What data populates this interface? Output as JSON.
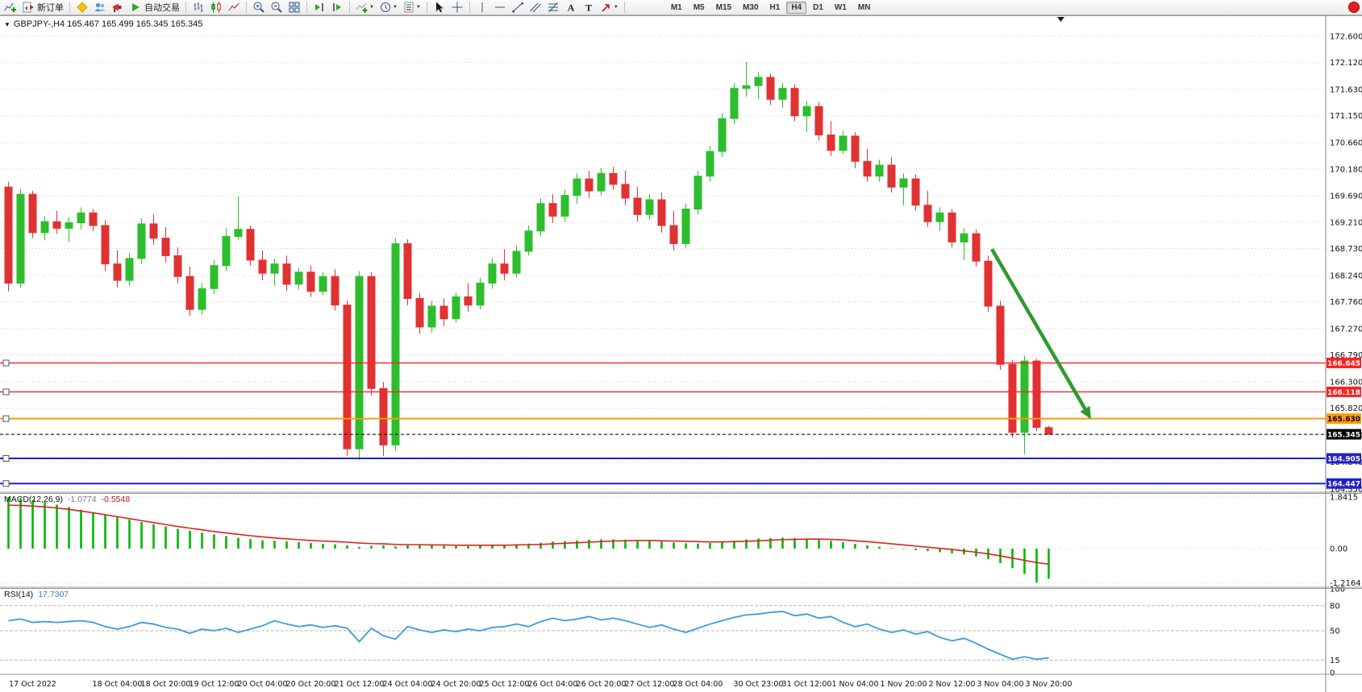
{
  "toolbar": {
    "new_order_label": "新订单",
    "autotrading_label": "自动交易",
    "timeframes": [
      "M1",
      "M5",
      "M15",
      "M30",
      "H1",
      "H4",
      "D1",
      "W1",
      "MN"
    ],
    "active_timeframe": "H4"
  },
  "chart": {
    "title": "GBPJPY-,H4 165.467 165.499 165.345 165.345"
  },
  "chart_data": {
    "type": "candlestick",
    "symbol": "GBPJPY-",
    "period": "H4",
    "ohlc": {
      "open": "165.467",
      "high": "165.499",
      "low": "165.345",
      "close": "165.345"
    },
    "colors": {
      "bull": "#2DBE2D",
      "bear": "#E03232",
      "grid": "#C9C9C9",
      "background": "#FFFFFF"
    },
    "y_axis_labels": [
      "172.600",
      "172.120",
      "171.630",
      "171.150",
      "170.660",
      "170.180",
      "169.690",
      "169.210",
      "168.730",
      "168.240",
      "167.760",
      "167.270",
      "166.790",
      "166.300",
      "165.820",
      "165.330",
      "164.840",
      "164.350"
    ],
    "candles": [
      [
        169.85,
        169.95,
        167.95,
        168.1
      ],
      [
        168.1,
        169.82,
        168.02,
        169.72
      ],
      [
        169.72,
        169.78,
        168.92,
        169.02
      ],
      [
        169.02,
        169.32,
        168.88,
        169.22
      ],
      [
        169.22,
        169.42,
        169.0,
        169.1
      ],
      [
        169.1,
        169.3,
        168.85,
        169.2
      ],
      [
        169.2,
        169.48,
        169.08,
        169.38
      ],
      [
        169.38,
        169.45,
        169.05,
        169.15
      ],
      [
        169.15,
        169.25,
        168.32,
        168.45
      ],
      [
        168.45,
        168.7,
        168.02,
        168.15
      ],
      [
        168.15,
        168.65,
        168.05,
        168.55
      ],
      [
        168.55,
        169.28,
        168.45,
        169.18
      ],
      [
        169.18,
        169.35,
        168.8,
        168.92
      ],
      [
        168.92,
        169.12,
        168.48,
        168.6
      ],
      [
        168.6,
        168.75,
        168.1,
        168.22
      ],
      [
        168.22,
        168.4,
        167.5,
        167.62
      ],
      [
        167.62,
        168.1,
        167.52,
        168.0
      ],
      [
        168.0,
        168.52,
        167.9,
        168.42
      ],
      [
        168.42,
        169.1,
        168.32,
        168.95
      ],
      [
        168.95,
        169.68,
        168.88,
        169.08
      ],
      [
        169.08,
        169.15,
        168.42,
        168.52
      ],
      [
        168.52,
        168.7,
        168.15,
        168.28
      ],
      [
        168.28,
        168.55,
        168.05,
        168.45
      ],
      [
        168.45,
        168.6,
        167.95,
        168.08
      ],
      [
        168.08,
        168.38,
        167.98,
        168.3
      ],
      [
        168.3,
        168.42,
        167.85,
        167.95
      ],
      [
        167.95,
        168.3,
        167.88,
        168.22
      ],
      [
        168.22,
        168.35,
        167.6,
        167.7
      ],
      [
        167.7,
        167.78,
        164.95,
        165.08
      ],
      [
        165.08,
        168.32,
        164.88,
        168.22
      ],
      [
        168.22,
        168.3,
        166.05,
        166.18
      ],
      [
        166.18,
        166.3,
        164.95,
        165.15
      ],
      [
        165.15,
        168.92,
        165.05,
        168.82
      ],
      [
        168.82,
        168.9,
        167.7,
        167.82
      ],
      [
        167.82,
        167.92,
        167.18,
        167.3
      ],
      [
        167.3,
        167.78,
        167.2,
        167.68
      ],
      [
        167.68,
        167.82,
        167.32,
        167.45
      ],
      [
        167.45,
        167.92,
        167.38,
        167.85
      ],
      [
        167.85,
        168.1,
        167.58,
        167.7
      ],
      [
        167.7,
        168.2,
        167.62,
        168.1
      ],
      [
        168.1,
        168.55,
        168.0,
        168.45
      ],
      [
        168.45,
        168.72,
        168.15,
        168.28
      ],
      [
        168.28,
        168.78,
        168.2,
        168.68
      ],
      [
        168.68,
        169.15,
        168.6,
        169.05
      ],
      [
        169.05,
        169.65,
        168.95,
        169.55
      ],
      [
        169.55,
        169.72,
        169.2,
        169.32
      ],
      [
        169.32,
        169.8,
        169.22,
        169.7
      ],
      [
        169.7,
        170.1,
        169.55,
        170.0
      ],
      [
        170.0,
        170.15,
        169.65,
        169.78
      ],
      [
        169.78,
        170.2,
        169.7,
        170.1
      ],
      [
        170.1,
        170.22,
        169.8,
        169.9
      ],
      [
        169.9,
        170.15,
        169.52,
        169.65
      ],
      [
        169.65,
        169.85,
        169.22,
        169.35
      ],
      [
        169.35,
        169.72,
        169.25,
        169.62
      ],
      [
        169.62,
        169.75,
        169.02,
        169.15
      ],
      [
        169.15,
        169.42,
        168.7,
        168.82
      ],
      [
        168.82,
        169.55,
        168.75,
        169.45
      ],
      [
        169.45,
        170.15,
        169.35,
        170.05
      ],
      [
        170.05,
        170.6,
        169.95,
        170.5
      ],
      [
        170.5,
        171.2,
        170.4,
        171.1
      ],
      [
        171.1,
        171.75,
        171.0,
        171.65
      ],
      [
        171.65,
        172.13,
        171.5,
        171.7
      ],
      [
        171.7,
        171.95,
        171.45,
        171.85
      ],
      [
        171.85,
        171.92,
        171.35,
        171.45
      ],
      [
        171.45,
        171.75,
        171.3,
        171.65
      ],
      [
        171.65,
        171.72,
        171.05,
        171.15
      ],
      [
        171.15,
        171.42,
        170.85,
        171.32
      ],
      [
        171.32,
        171.4,
        170.7,
        170.8
      ],
      [
        170.8,
        171.05,
        170.42,
        170.52
      ],
      [
        170.52,
        170.88,
        170.45,
        170.78
      ],
      [
        170.78,
        170.85,
        170.2,
        170.32
      ],
      [
        170.32,
        170.55,
        169.95,
        170.05
      ],
      [
        170.05,
        170.35,
        169.95,
        170.25
      ],
      [
        170.25,
        170.4,
        169.75,
        169.85
      ],
      [
        169.85,
        170.1,
        169.52,
        170.0
      ],
      [
        170.0,
        170.08,
        169.42,
        169.52
      ],
      [
        169.52,
        169.78,
        169.12,
        169.22
      ],
      [
        169.22,
        169.48,
        169.05,
        169.38
      ],
      [
        169.38,
        169.45,
        168.75,
        168.85
      ],
      [
        168.85,
        169.1,
        168.52,
        169.0
      ],
      [
        169.0,
        169.08,
        168.4,
        168.5
      ],
      [
        168.5,
        168.6,
        167.58,
        167.68
      ],
      [
        167.68,
        167.78,
        166.52,
        166.62
      ],
      [
        166.62,
        166.7,
        165.28,
        165.38
      ],
      [
        165.38,
        166.78,
        164.98,
        166.68
      ],
      [
        166.68,
        166.72,
        165.4,
        165.47
      ],
      [
        165.467,
        165.499,
        165.345,
        165.345
      ]
    ],
    "hlines": [
      {
        "label": "166.645",
        "price": 166.645,
        "color": "#FF2020",
        "text_color": "#FFFFFF",
        "width": 1.4,
        "style": "solid",
        "handle": true
      },
      {
        "label": "166.118",
        "price": 166.118,
        "color": "#FF2020",
        "text_color": "#FFFFFF",
        "width": 1.4,
        "style": "solid",
        "handle": true
      },
      {
        "label": "165.630",
        "price": 165.63,
        "color": "#FF9C00",
        "text_color": "#000000",
        "width": 2,
        "style": "solid",
        "handle": true
      },
      {
        "label": "165.345",
        "price": 165.345,
        "color": "#000000",
        "text_color": "#FFFFFF",
        "width": 1,
        "style": "dashed",
        "handle": false
      },
      {
        "label": "164.905",
        "price": 164.905,
        "color": "#2020CC",
        "text_color": "#FFFFFF",
        "width": 2,
        "style": "solid",
        "handle": true
      },
      {
        "label": "164.447",
        "price": 164.447,
        "color": "#2020CC",
        "text_color": "#FFFFFF",
        "width": 2,
        "style": "solid",
        "handle": true
      }
    ],
    "arrow": {
      "from": {
        "bar": 81.3,
        "price": 168.72
      },
      "to": {
        "bar": 89.5,
        "price": 165.62
      },
      "color": "#2E9B2E"
    },
    "macd": {
      "title": "MACD(12,26,9)",
      "value_main": "-1.0774",
      "value_signal": "-0.5548",
      "histogram_color": "#00B800",
      "signal_color": "#E02020",
      "scale_labels": [
        "1.8415",
        "0.00",
        "-1.2164"
      ],
      "histogram": [
        1.8415,
        1.8,
        1.74,
        1.66,
        1.57,
        1.48,
        1.39,
        1.3,
        1.21,
        1.12,
        1.03,
        0.95,
        0.87,
        0.79,
        0.71,
        0.64,
        0.57,
        0.51,
        0.45,
        0.39,
        0.34,
        0.3,
        0.28,
        0.26,
        0.23,
        0.2,
        0.17,
        0.15,
        0.12,
        0.06,
        0.1,
        0.12,
        0.08,
        0.12,
        0.14,
        0.12,
        0.1,
        0.09,
        0.09,
        0.1,
        0.11,
        0.13,
        0.16,
        0.18,
        0.21,
        0.25,
        0.27,
        0.29,
        0.32,
        0.33,
        0.33,
        0.32,
        0.3,
        0.27,
        0.25,
        0.22,
        0.19,
        0.18,
        0.2,
        0.24,
        0.28,
        0.33,
        0.36,
        0.38,
        0.39,
        0.38,
        0.36,
        0.32,
        0.28,
        0.23,
        0.17,
        0.12,
        0.07,
        0.02,
        -0.02,
        -0.06,
        -0.09,
        -0.13,
        -0.17,
        -0.21,
        -0.28,
        -0.38,
        -0.52,
        -0.7,
        -0.9,
        -1.2164,
        -1.0774
      ],
      "signal": [
        1.55,
        1.54,
        1.52,
        1.49,
        1.45,
        1.4,
        1.34,
        1.28,
        1.21,
        1.14,
        1.07,
        1.0,
        0.93,
        0.86,
        0.79,
        0.73,
        0.67,
        0.61,
        0.56,
        0.51,
        0.46,
        0.42,
        0.38,
        0.35,
        0.32,
        0.29,
        0.27,
        0.25,
        0.23,
        0.2,
        0.18,
        0.17,
        0.15,
        0.14,
        0.14,
        0.13,
        0.13,
        0.12,
        0.12,
        0.12,
        0.12,
        0.12,
        0.13,
        0.14,
        0.15,
        0.17,
        0.19,
        0.21,
        0.23,
        0.25,
        0.27,
        0.28,
        0.29,
        0.29,
        0.28,
        0.27,
        0.26,
        0.25,
        0.24,
        0.24,
        0.25,
        0.26,
        0.28,
        0.3,
        0.32,
        0.33,
        0.34,
        0.34,
        0.33,
        0.31,
        0.28,
        0.25,
        0.21,
        0.17,
        0.13,
        0.09,
        0.05,
        0.01,
        -0.03,
        -0.08,
        -0.13,
        -0.19,
        -0.26,
        -0.34,
        -0.42,
        -0.5,
        -0.5548
      ]
    },
    "rsi": {
      "title": "RSI(14)",
      "value": "17.7307",
      "color": "#3E9ADE",
      "scale_labels": [
        "100",
        "80",
        "50",
        "15",
        "0"
      ],
      "levels": [
        80,
        50,
        15
      ],
      "values": [
        62,
        64,
        60,
        61,
        60,
        61,
        62,
        60,
        55,
        52,
        55,
        60,
        58,
        54,
        52,
        47,
        52,
        50,
        53,
        48,
        52,
        56,
        62,
        58,
        55,
        57,
        54,
        56,
        53,
        37,
        53,
        44,
        40,
        55,
        51,
        48,
        51,
        49,
        52,
        50,
        54,
        55,
        58,
        55,
        61,
        65,
        62,
        64,
        67,
        63,
        65,
        62,
        58,
        54,
        57,
        52,
        48,
        53,
        58,
        62,
        66,
        69,
        70,
        72,
        73,
        68,
        70,
        65,
        67,
        60,
        55,
        58,
        52,
        48,
        51,
        46,
        49,
        42,
        38,
        41,
        35,
        28,
        22,
        16,
        19,
        16,
        17.73
      ]
    },
    "x_labels": [
      {
        "bar": 2,
        "text": "17 Oct 2022"
      },
      {
        "bar": 9,
        "text": "18 Oct 04:00"
      },
      {
        "bar": 13,
        "text": "18 Oct 20:00"
      },
      {
        "bar": 17,
        "text": "19 Oct 12:00"
      },
      {
        "bar": 21,
        "text": "20 Oct 04:00"
      },
      {
        "bar": 25,
        "text": "20 Oct 20:00"
      },
      {
        "bar": 29,
        "text": "21 Oct 12:00"
      },
      {
        "bar": 33,
        "text": "24 Oct 04:00"
      },
      {
        "bar": 37,
        "text": "24 Oct 20:00"
      },
      {
        "bar": 41,
        "text": "25 Oct 12:00"
      },
      {
        "bar": 45,
        "text": "26 Oct 04:00"
      },
      {
        "bar": 49,
        "text": "26 Oct 20:00"
      },
      {
        "bar": 53,
        "text": "27 Oct 12:00"
      },
      {
        "bar": 57,
        "text": "28 Oct 04:00"
      },
      {
        "bar": 62,
        "text": "30 Oct 23:00"
      },
      {
        "bar": 66,
        "text": "31 Oct 12:00"
      },
      {
        "bar": 70,
        "text": "1 Nov 04:00"
      },
      {
        "bar": 74,
        "text": "1 Nov 20:00"
      },
      {
        "bar": 78,
        "text": "2 Nov 12:00"
      },
      {
        "bar": 82,
        "text": "3 Nov 04:00"
      },
      {
        "bar": 86,
        "text": "3 Nov 20:00"
      }
    ]
  }
}
